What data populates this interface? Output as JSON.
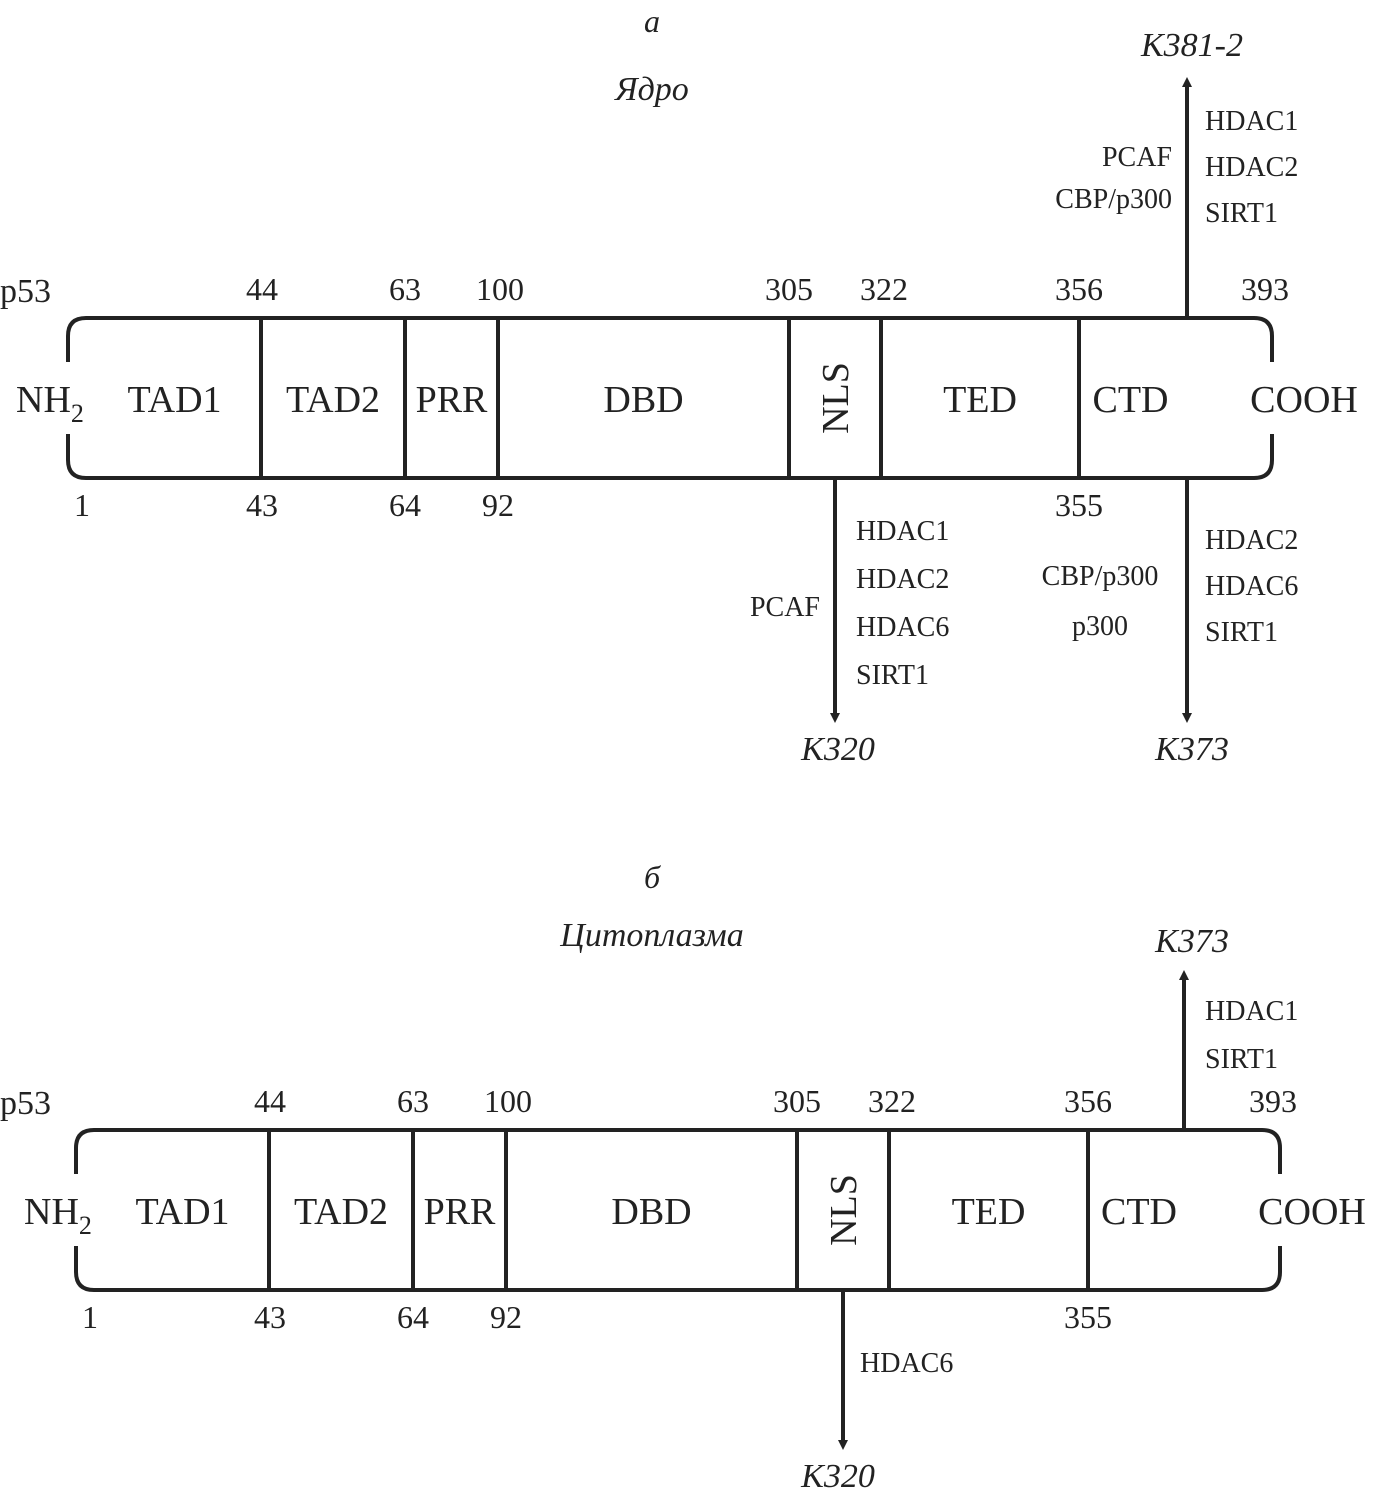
{
  "panels": [
    {
      "letter": "а",
      "title": "Ядро",
      "protein": "p53",
      "n_term": "NH",
      "n_term_sub": "2",
      "c_term": "COOH",
      "domains": [
        "TAD1",
        "TAD2",
        "PRR",
        "DBD",
        "NLS",
        "TED",
        "CTD"
      ],
      "top_numbers": [
        "44",
        "63",
        "100",
        "305",
        "322",
        "356",
        "393"
      ],
      "bottom_numbers": [
        "1",
        "43",
        "64",
        "92",
        "355"
      ],
      "sites": [
        {
          "label": "K381-2",
          "direction": "up",
          "right_enzymes": [
            "HDAC1",
            "HDAC2",
            "SIRT1"
          ],
          "left_enzymes": [
            "PCAF",
            "CBP/p300"
          ]
        },
        {
          "label": "K320",
          "direction": "down",
          "right_enzymes": [
            "HDAC1",
            "HDAC2",
            "HDAC6",
            "SIRT1"
          ],
          "left_enzymes": [
            "PCAF"
          ]
        },
        {
          "label": "K373",
          "direction": "down",
          "right_enzymes": [
            "HDAC2",
            "HDAC6",
            "SIRT1"
          ],
          "left_enzymes": [
            "CBP/p300",
            "p300"
          ]
        }
      ]
    },
    {
      "letter": "б",
      "title": "Цитоплазма",
      "protein": "p53",
      "n_term": "NH",
      "n_term_sub": "2",
      "c_term": "COOH",
      "domains": [
        "TAD1",
        "TAD2",
        "PRR",
        "DBD",
        "NLS",
        "TED",
        "CTD"
      ],
      "top_numbers": [
        "44",
        "63",
        "100",
        "305",
        "322",
        "356",
        "393"
      ],
      "bottom_numbers": [
        "1",
        "43",
        "64",
        "92",
        "355"
      ],
      "sites": [
        {
          "label": "K373",
          "direction": "up",
          "right_enzymes": [
            "HDAC1",
            "SIRT1"
          ],
          "left_enzymes": []
        },
        {
          "label": "K320",
          "direction": "down",
          "right_enzymes": [
            "HDAC6"
          ],
          "left_enzymes": []
        }
      ]
    }
  ]
}
